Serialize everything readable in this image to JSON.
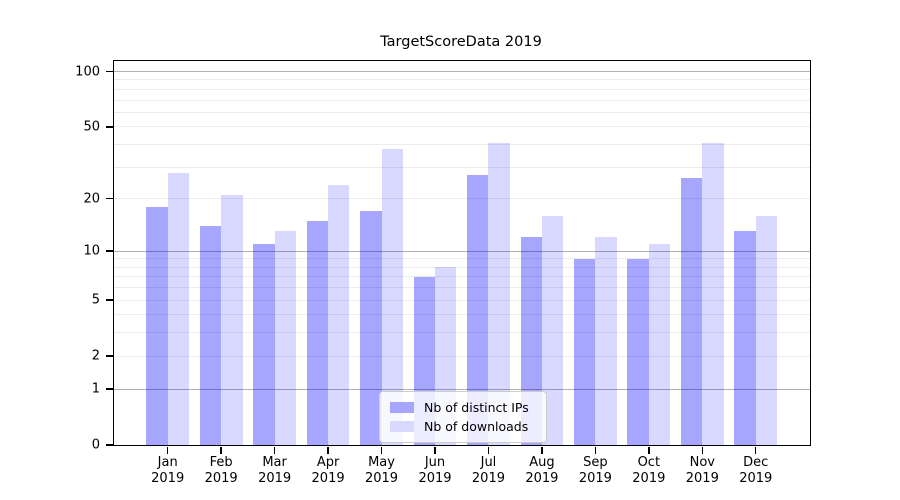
{
  "chart_data": {
    "type": "bar",
    "title": "TargetScoreData 2019",
    "categories": [
      {
        "month": "Jan",
        "year": "2019"
      },
      {
        "month": "Feb",
        "year": "2019"
      },
      {
        "month": "Mar",
        "year": "2019"
      },
      {
        "month": "Apr",
        "year": "2019"
      },
      {
        "month": "May",
        "year": "2019"
      },
      {
        "month": "Jun",
        "year": "2019"
      },
      {
        "month": "Jul",
        "year": "2019"
      },
      {
        "month": "Aug",
        "year": "2019"
      },
      {
        "month": "Sep",
        "year": "2019"
      },
      {
        "month": "Oct",
        "year": "2019"
      },
      {
        "month": "Nov",
        "year": "2019"
      },
      {
        "month": "Dec",
        "year": "2019"
      }
    ],
    "series": [
      {
        "name": "Nb of distinct IPs",
        "color": "rgba(0,0,255,0.35)",
        "legend_color": "#a6a6ff",
        "values": [
          18,
          14,
          11,
          15,
          17,
          7,
          27,
          12,
          9,
          9,
          26,
          13
        ]
      },
      {
        "name": "Nb of downloads",
        "color": "rgba(0,0,255,0.15)",
        "legend_color": "#d9d9ff",
        "values": [
          28,
          21,
          13,
          24,
          38,
          8,
          41,
          16,
          12,
          11,
          41,
          16
        ]
      }
    ],
    "yscale": "log(value+1)",
    "ylim": [
      0,
      114
    ],
    "y_tick_labels": [
      {
        "label": "0",
        "value": 0
      },
      {
        "label": "1",
        "value": 1
      },
      {
        "label": "2",
        "value": 2
      },
      {
        "label": "5",
        "value": 5
      },
      {
        "label": "10",
        "value": 10
      },
      {
        "label": "20",
        "value": 20
      },
      {
        "label": "50",
        "value": 50
      },
      {
        "label": "100",
        "value": 100
      }
    ],
    "y_major_gridlines": [
      1,
      10,
      100
    ],
    "y_minor_gridlines": [
      2,
      3,
      4,
      5,
      6,
      7,
      8,
      9,
      20,
      30,
      40,
      50,
      60,
      70,
      80,
      90
    ],
    "grid": true,
    "legend_position": "lower center"
  }
}
